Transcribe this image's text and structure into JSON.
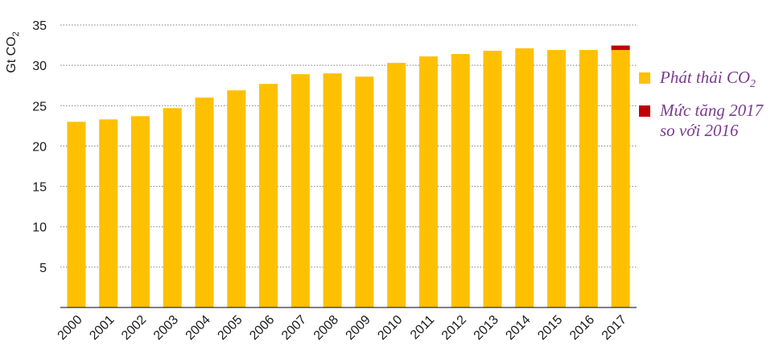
{
  "chart_data": {
    "type": "bar",
    "ylabel": "Gt CO",
    "ylabel_sub": "2",
    "ylim": [
      0,
      35
    ],
    "yticks": [
      5,
      10,
      15,
      20,
      25,
      30,
      35
    ],
    "grid": true,
    "legend_position": "right",
    "categories": [
      "2000",
      "2001",
      "2002",
      "2003",
      "2004",
      "2005",
      "2006",
      "2007",
      "2008",
      "2009",
      "2010",
      "2011",
      "2012",
      "2013",
      "2014",
      "2015",
      "2016",
      "2017"
    ],
    "series": [
      {
        "name": "Phát thải CO",
        "name_sub": "2",
        "color": "#FFC000",
        "values": [
          23.0,
          23.3,
          23.7,
          24.7,
          26.0,
          26.9,
          27.7,
          28.9,
          29.0,
          28.6,
          30.3,
          31.1,
          31.4,
          31.8,
          32.1,
          31.9,
          31.9,
          31.9
        ]
      },
      {
        "name": "Mức tăng 2017\nso với 2016",
        "color": "#C00000",
        "values": [
          0,
          0,
          0,
          0,
          0,
          0,
          0,
          0,
          0,
          0,
          0,
          0,
          0,
          0,
          0,
          0,
          0,
          0.55
        ]
      }
    ]
  }
}
